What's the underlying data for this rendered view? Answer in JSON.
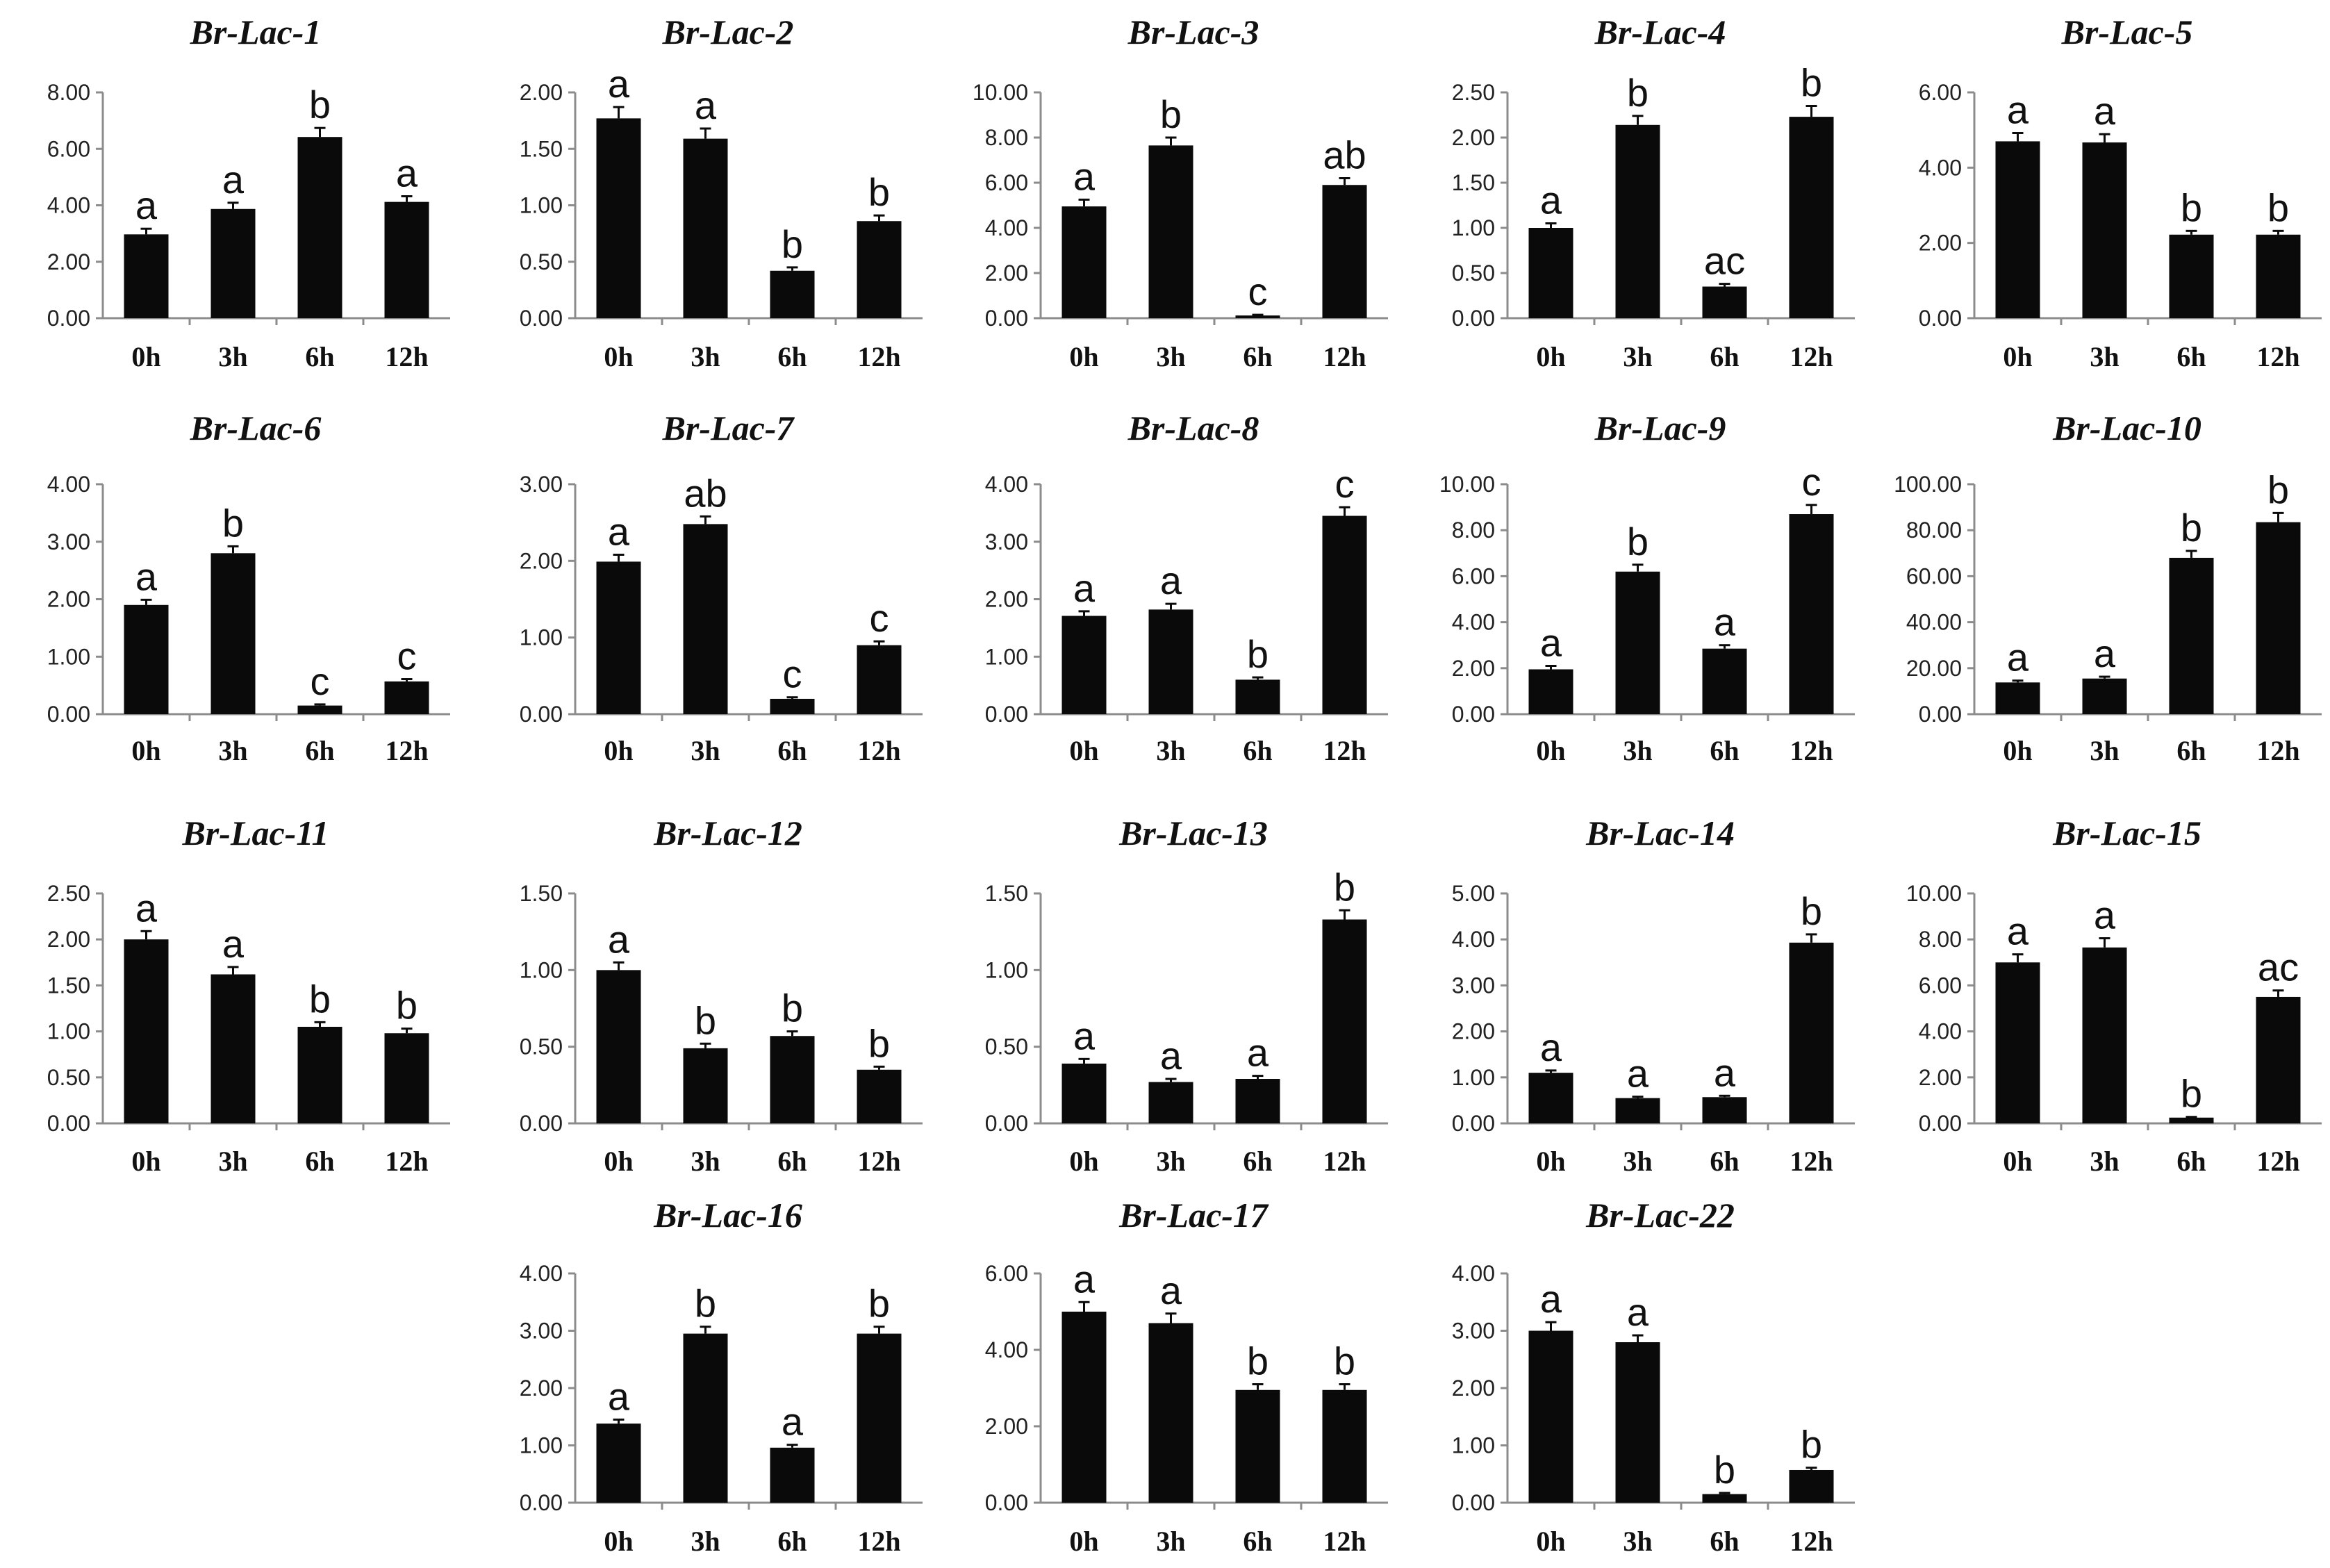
{
  "chart_data": [
    {
      "type": "bar",
      "title": "Br-Lac-1",
      "categories": [
        "0h",
        "3h",
        "6h",
        "12h"
      ],
      "values": [
        2.97,
        3.87,
        6.42,
        4.12
      ],
      "errors": [
        0.2,
        0.22,
        0.32,
        0.2
      ],
      "labels": [
        "a",
        "a",
        "b",
        "a"
      ],
      "ylim": [
        0,
        8
      ],
      "yticks": [
        "0.00",
        "2.00",
        "4.00",
        "6.00",
        "8.00"
      ],
      "xlabel": "",
      "ylabel": ""
    },
    {
      "type": "bar",
      "title": "Br-Lac-2",
      "categories": [
        "0h",
        "3h",
        "6h",
        "12h"
      ],
      "values": [
        1.77,
        1.59,
        0.42,
        0.86
      ],
      "errors": [
        0.1,
        0.09,
        0.03,
        0.05
      ],
      "labels": [
        "a",
        "a",
        "b",
        "b"
      ],
      "ylim": [
        0,
        2
      ],
      "yticks": [
        "0.00",
        "0.50",
        "1.00",
        "1.50",
        "2.00"
      ],
      "xlabel": "",
      "ylabel": ""
    },
    {
      "type": "bar",
      "title": "Br-Lac-3",
      "categories": [
        "0h",
        "3h",
        "6h",
        "12h"
      ],
      "values": [
        4.95,
        7.65,
        0.12,
        5.9
      ],
      "errors": [
        0.3,
        0.35,
        0.03,
        0.3
      ],
      "labels": [
        "a",
        "b",
        "c",
        "ab"
      ],
      "ylim": [
        0,
        10
      ],
      "yticks": [
        "0.00",
        "2.00",
        "4.00",
        "6.00",
        "8.00",
        "10.00"
      ],
      "xlabel": "",
      "ylabel": ""
    },
    {
      "type": "bar",
      "title": "Br-Lac-4",
      "categories": [
        "0h",
        "3h",
        "6h",
        "12h"
      ],
      "values": [
        1.0,
        2.14,
        0.35,
        2.23
      ],
      "errors": [
        0.05,
        0.1,
        0.03,
        0.12
      ],
      "labels": [
        "a",
        "b",
        "ac",
        "b"
      ],
      "ylim": [
        0,
        2.5
      ],
      "yticks": [
        "0.00",
        "0.50",
        "1.00",
        "1.50",
        "2.00",
        "2.50"
      ],
      "xlabel": "",
      "ylabel": ""
    },
    {
      "type": "bar",
      "title": "Br-Lac-5",
      "categories": [
        "0h",
        "3h",
        "6h",
        "12h"
      ],
      "values": [
        4.7,
        4.67,
        2.22,
        2.22
      ],
      "errors": [
        0.22,
        0.22,
        0.1,
        0.1
      ],
      "labels": [
        "a",
        "a",
        "b",
        "b"
      ],
      "ylim": [
        0,
        6
      ],
      "yticks": [
        "0.00",
        "2.00",
        "4.00",
        "6.00"
      ],
      "xlabel": "",
      "ylabel": ""
    },
    {
      "type": "bar",
      "title": "Br-Lac-6",
      "categories": [
        "0h",
        "3h",
        "6h",
        "12h"
      ],
      "values": [
        1.9,
        2.8,
        0.15,
        0.57
      ],
      "errors": [
        0.09,
        0.12,
        0.02,
        0.04
      ],
      "labels": [
        "a",
        "b",
        "c",
        "c"
      ],
      "ylim": [
        0,
        4
      ],
      "yticks": [
        "0.00",
        "1.00",
        "2.00",
        "3.00",
        "4.00"
      ],
      "xlabel": "",
      "ylabel": ""
    },
    {
      "type": "bar",
      "title": "Br-Lac-7",
      "categories": [
        "0h",
        "3h",
        "6h",
        "12h"
      ],
      "values": [
        1.99,
        2.48,
        0.2,
        0.9
      ],
      "errors": [
        0.09,
        0.1,
        0.02,
        0.05
      ],
      "labels": [
        "a",
        "ab",
        "c",
        "c"
      ],
      "ylim": [
        0,
        3
      ],
      "yticks": [
        "0.00",
        "1.00",
        "2.00",
        "3.00"
      ],
      "xlabel": "",
      "ylabel": ""
    },
    {
      "type": "bar",
      "title": "Br-Lac-8",
      "categories": [
        "0h",
        "3h",
        "6h",
        "12h"
      ],
      "values": [
        1.71,
        1.82,
        0.6,
        3.45
      ],
      "errors": [
        0.08,
        0.1,
        0.04,
        0.15
      ],
      "labels": [
        "a",
        "a",
        "b",
        "c"
      ],
      "ylim": [
        0,
        4
      ],
      "yticks": [
        "0.00",
        "1.00",
        "2.00",
        "3.00",
        "4.00"
      ],
      "xlabel": "",
      "ylabel": ""
    },
    {
      "type": "bar",
      "title": "Br-Lac-9",
      "categories": [
        "0h",
        "3h",
        "6h",
        "12h"
      ],
      "values": [
        1.95,
        6.2,
        2.85,
        8.7
      ],
      "errors": [
        0.15,
        0.3,
        0.15,
        0.4
      ],
      "labels": [
        "a",
        "b",
        "a",
        "c"
      ],
      "ylim": [
        0,
        10
      ],
      "yticks": [
        "0.00",
        "2.00",
        "4.00",
        "6.00",
        "8.00",
        "10.00"
      ],
      "xlabel": "",
      "ylabel": ""
    },
    {
      "type": "bar",
      "title": "Br-Lac-10",
      "categories": [
        "0h",
        "3h",
        "6h",
        "12h"
      ],
      "values": [
        13.8,
        15.5,
        68.0,
        83.5
      ],
      "errors": [
        0.8,
        0.8,
        3.0,
        4.0
      ],
      "labels": [
        "a",
        "a",
        "b",
        "b"
      ],
      "ylim": [
        0,
        100
      ],
      "yticks": [
        "0.00",
        "20.00",
        "40.00",
        "60.00",
        "80.00",
        "100.00"
      ],
      "xlabel": "",
      "ylabel": ""
    },
    {
      "type": "bar",
      "title": "Br-Lac-11",
      "categories": [
        "0h",
        "3h",
        "6h",
        "12h"
      ],
      "values": [
        2.0,
        1.62,
        1.05,
        0.98
      ],
      "errors": [
        0.09,
        0.08,
        0.05,
        0.05
      ],
      "labels": [
        "a",
        "a",
        "b",
        "b"
      ],
      "ylim": [
        0,
        2.5
      ],
      "yticks": [
        "0.00",
        "0.50",
        "1.00",
        "1.50",
        "2.00",
        "2.50"
      ],
      "xlabel": "",
      "ylabel": ""
    },
    {
      "type": "bar",
      "title": "Br-Lac-12",
      "categories": [
        "0h",
        "3h",
        "6h",
        "12h"
      ],
      "values": [
        1.0,
        0.49,
        0.57,
        0.35
      ],
      "errors": [
        0.05,
        0.03,
        0.03,
        0.02
      ],
      "labels": [
        "a",
        "b",
        "b",
        "b"
      ],
      "ylim": [
        0,
        1.5
      ],
      "yticks": [
        "0.00",
        "0.50",
        "1.00",
        "1.50"
      ],
      "xlabel": "",
      "ylabel": ""
    },
    {
      "type": "bar",
      "title": "Br-Lac-13",
      "categories": [
        "0h",
        "3h",
        "6h",
        "12h"
      ],
      "values": [
        0.39,
        0.27,
        0.29,
        1.33
      ],
      "errors": [
        0.03,
        0.02,
        0.02,
        0.06
      ],
      "labels": [
        "a",
        "a",
        "a",
        "b"
      ],
      "ylim": [
        0,
        1.5
      ],
      "yticks": [
        "0.00",
        "0.50",
        "1.00",
        "1.50"
      ],
      "xlabel": "",
      "ylabel": ""
    },
    {
      "type": "bar",
      "title": "Br-Lac-14",
      "categories": [
        "0h",
        "3h",
        "6h",
        "12h"
      ],
      "values": [
        1.1,
        0.55,
        0.57,
        3.93
      ],
      "errors": [
        0.05,
        0.03,
        0.03,
        0.18
      ],
      "labels": [
        "a",
        "a",
        "a",
        "b"
      ],
      "ylim": [
        0,
        5
      ],
      "yticks": [
        "0.00",
        "1.00",
        "2.00",
        "3.00",
        "4.00",
        "5.00"
      ],
      "xlabel": "",
      "ylabel": ""
    },
    {
      "type": "bar",
      "title": "Br-Lac-15",
      "categories": [
        "0h",
        "3h",
        "6h",
        "12h"
      ],
      "values": [
        7.0,
        7.65,
        0.25,
        5.5
      ],
      "errors": [
        0.35,
        0.4,
        0.03,
        0.28
      ],
      "labels": [
        "a",
        "a",
        "b",
        "ac"
      ],
      "ylim": [
        0,
        10
      ],
      "yticks": [
        "0.00",
        "2.00",
        "4.00",
        "6.00",
        "8.00",
        "10.00"
      ],
      "xlabel": "",
      "ylabel": ""
    },
    {
      "type": "bar",
      "title": "Br-Lac-16",
      "categories": [
        "0h",
        "3h",
        "6h",
        "12h"
      ],
      "values": [
        1.38,
        2.95,
        0.96,
        2.95
      ],
      "errors": [
        0.07,
        0.12,
        0.05,
        0.12
      ],
      "labels": [
        "a",
        "b",
        "a",
        "b"
      ],
      "ylim": [
        0,
        4
      ],
      "yticks": [
        "0.00",
        "1.00",
        "2.00",
        "3.00",
        "4.00"
      ],
      "xlabel": "",
      "ylabel": ""
    },
    {
      "type": "bar",
      "title": "Br-Lac-17",
      "categories": [
        "0h",
        "3h",
        "6h",
        "12h"
      ],
      "values": [
        5.0,
        4.7,
        2.95,
        2.95
      ],
      "errors": [
        0.25,
        0.25,
        0.15,
        0.15
      ],
      "labels": [
        "a",
        "a",
        "b",
        "b"
      ],
      "ylim": [
        0,
        6
      ],
      "yticks": [
        "0.00",
        "2.00",
        "4.00",
        "6.00"
      ],
      "xlabel": "",
      "ylabel": ""
    },
    {
      "type": "bar",
      "title": "Br-Lac-22",
      "categories": [
        "0h",
        "3h",
        "6h",
        "12h"
      ],
      "values": [
        3.0,
        2.8,
        0.15,
        0.57
      ],
      "errors": [
        0.15,
        0.12,
        0.02,
        0.04
      ],
      "labels": [
        "a",
        "a",
        "b",
        "b"
      ],
      "ylim": [
        0,
        4
      ],
      "yticks": [
        "0.00",
        "1.00",
        "2.00",
        "3.00",
        "4.00"
      ],
      "xlabel": "",
      "ylabel": ""
    }
  ]
}
